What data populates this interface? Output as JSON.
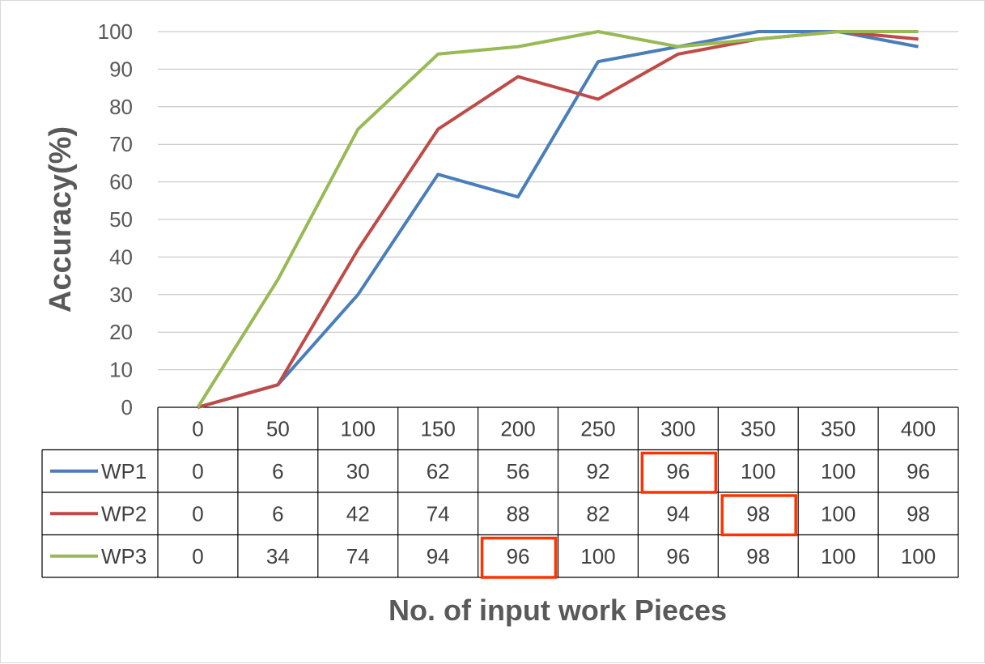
{
  "chart_data": {
    "type": "line",
    "ylabel": "Accuracy(%)",
    "xlabel": "No. of input work Pieces",
    "ylim": [
      0,
      100
    ],
    "yticks": [
      0,
      10,
      20,
      30,
      40,
      50,
      60,
      70,
      80,
      90,
      100
    ],
    "grid": "horizontal",
    "legend": "data-table",
    "categories": [
      "0",
      "50",
      "100",
      "150",
      "200",
      "250",
      "300",
      "350",
      "350",
      "400"
    ],
    "series": [
      {
        "name": "WP1",
        "color": "#4a7ebb",
        "values": [
          0,
          6,
          30,
          62,
          56,
          92,
          96,
          100,
          100,
          96
        ]
      },
      {
        "name": "WP2",
        "color": "#be4b48",
        "values": [
          0,
          6,
          42,
          74,
          88,
          82,
          94,
          98,
          100,
          98
        ]
      },
      {
        "name": "WP3",
        "color": "#98b954",
        "values": [
          0,
          34,
          74,
          94,
          96,
          100,
          96,
          98,
          100,
          100
        ]
      }
    ],
    "highlight_color": "#ff3300",
    "highlights": [
      {
        "series": "WP1",
        "category_index": 6
      },
      {
        "series": "WP2",
        "category_index": 7
      },
      {
        "series": "WP3",
        "category_index": 4
      }
    ]
  }
}
